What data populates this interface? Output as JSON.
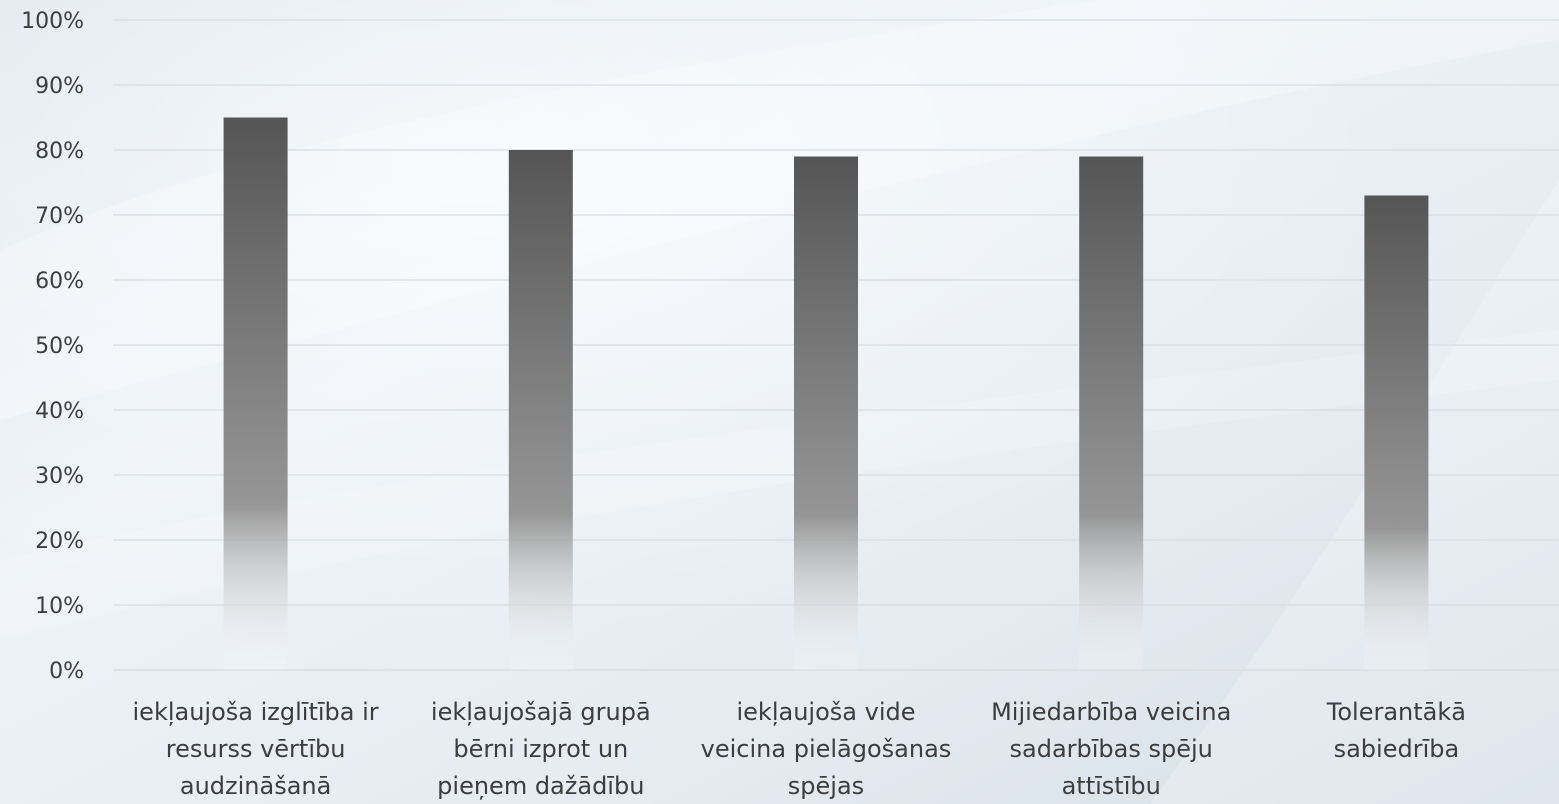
{
  "chart_data": {
    "type": "bar",
    "title": "",
    "xlabel": "",
    "ylabel": "",
    "ylim": [
      0,
      100
    ],
    "y_ticks": [
      "0%",
      "10%",
      "20%",
      "30%",
      "40%",
      "50%",
      "60%",
      "70%",
      "80%",
      "90%",
      "100%"
    ],
    "grid": true,
    "legend": "none",
    "categories": [
      "iekļaujoša izglītība ir resurss vērtību audzināšanā",
      "iekļaujošajā grupā bērni izprot un pieņem dažādību",
      "iekļaujoša vide veicina pielāgošanas spējas",
      "Mijiedarbība veicina sadarbības spēju attīstību",
      "Tolerantākā sabiedrība"
    ],
    "category_lines": [
      [
        "iekļaujoša izglītība ir",
        "resurss vērtību",
        "audzināšanā"
      ],
      [
        "iekļaujošajā grupā",
        "bērni izprot un",
        "pieņem dažādību"
      ],
      [
        "iekļaujoša vide",
        "veicina pielāgošanas",
        "spējas"
      ],
      [
        "Mijiedarbība veicina",
        "sadarbības spēju",
        "attīstību"
      ],
      [
        "Tolerantākā",
        "sabiedrība"
      ]
    ],
    "values": [
      85,
      80,
      79,
      79,
      73
    ],
    "colors": {
      "bar_top": "#555555",
      "bar_mid": "#969696",
      "bar_bottom": "#ffffff",
      "grid": "#d8dde2",
      "text": "#3d3d3d"
    }
  }
}
